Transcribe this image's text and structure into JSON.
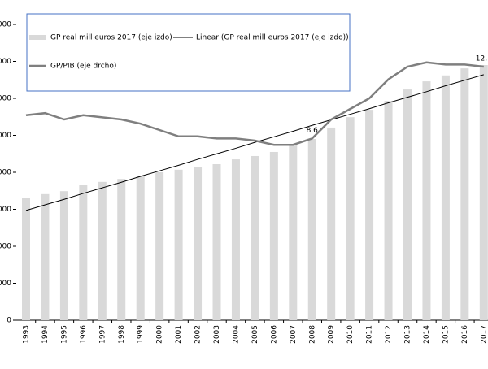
{
  "chart_data": {
    "type": "bar",
    "categories": [
      "1993",
      "1994",
      "1995",
      "1996",
      "1997",
      "1998",
      "1999",
      "2000",
      "2001",
      "2002",
      "2003",
      "2004",
      "2005",
      "2006",
      "2007",
      "2008",
      "2009",
      "2010",
      "2011",
      "2012",
      "2013",
      "2014",
      "2015",
      "2016",
      "2017"
    ],
    "series": [
      {
        "name": "GP real mill euros 2017 (eje izdo)",
        "type": "bar",
        "color": "#d9d9d9",
        "values": [
          33000,
          34100,
          34900,
          36500,
          37400,
          38200,
          39100,
          40000,
          40700,
          41500,
          42200,
          43500,
          44400,
          45500,
          47300,
          49000,
          52100,
          54900,
          56900,
          59300,
          62400,
          64600,
          66200,
          68100,
          69000
        ]
      },
      {
        "name": "Linear (GP real mill euros 2017 (eje izdo))",
        "type": "line",
        "color": "#000000",
        "values": [
          29700,
          31200,
          32700,
          34300,
          35800,
          37300,
          38900,
          40400,
          41900,
          43500,
          45000,
          46500,
          48100,
          49600,
          51100,
          52700,
          54200,
          55700,
          57200,
          58800,
          60300,
          61800,
          63400,
          64900,
          66400
        ]
      },
      {
        "name": "GP/PIB (eje drcho)",
        "type": "line",
        "axis": "y2",
        "color": "#7f7f7f",
        "values": [
          9.7,
          9.8,
          9.5,
          9.7,
          9.6,
          9.5,
          9.3,
          9.0,
          8.7,
          8.7,
          8.6,
          8.6,
          8.5,
          8.3,
          8.3,
          8.6,
          9.5,
          10.0,
          10.5,
          11.4,
          12.0,
          12.2,
          12.1,
          12.1,
          12.0
        ],
        "value_labels": [
          null,
          null,
          null,
          null,
          null,
          null,
          null,
          null,
          null,
          null,
          null,
          null,
          null,
          null,
          null,
          "8,6",
          null,
          null,
          null,
          null,
          null,
          null,
          null,
          null,
          "12,"
        ]
      }
    ],
    "ylim": [
      0,
      80000
    ],
    "yticks": [
      {
        "value": 0,
        "label": "0"
      },
      {
        "value": 10000,
        "label": "000"
      },
      {
        "value": 20000,
        "label": "000"
      },
      {
        "value": 30000,
        "label": "000"
      },
      {
        "value": 40000,
        "label": "000"
      },
      {
        "value": 50000,
        "label": "000"
      },
      {
        "value": 60000,
        "label": "000"
      },
      {
        "value": 70000,
        "label": "000"
      },
      {
        "value": 80000,
        "label": "000"
      }
    ],
    "y2lim": [
      0,
      14
    ],
    "grid": false
  }
}
